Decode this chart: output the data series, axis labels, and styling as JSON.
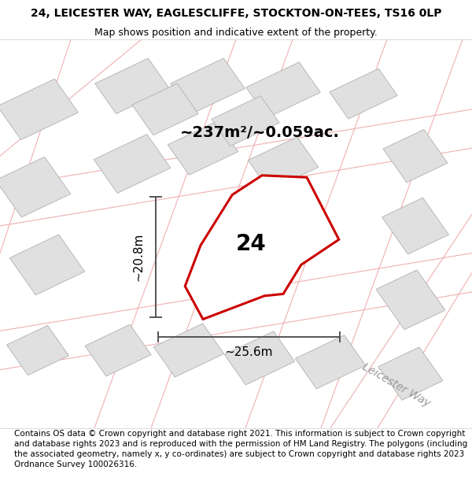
{
  "title": "24, LEICESTER WAY, EAGLESCLIFFE, STOCKTON-ON-TEES, TS16 0LP",
  "subtitle": "Map shows position and indicative extent of the property.",
  "footer": "Contains OS data © Crown copyright and database right 2021. This information is subject to Crown copyright and database rights 2023 and is reproduced with the permission of HM Land Registry. The polygons (including the associated geometry, namely x, y co-ordinates) are subject to Crown copyright and database rights 2023 Ordnance Survey 100026316.",
  "area_label": "~237m²/~0.059ac.",
  "number_label": "24",
  "dim_width": "~25.6m",
  "dim_height": "~20.8m",
  "road_label": "Leicester Way",
  "map_bg": "#f9f8f8",
  "property_color": "#cc0000",
  "property_fill": "#ffffff",
  "dim_arrow_color": "#555555",
  "title_fontsize": 10,
  "subtitle_fontsize": 9,
  "area_fontsize": 14,
  "number_fontsize": 20,
  "dim_fontsize": 11,
  "footer_fontsize": 7.5,
  "road_label_fontsize": 10
}
